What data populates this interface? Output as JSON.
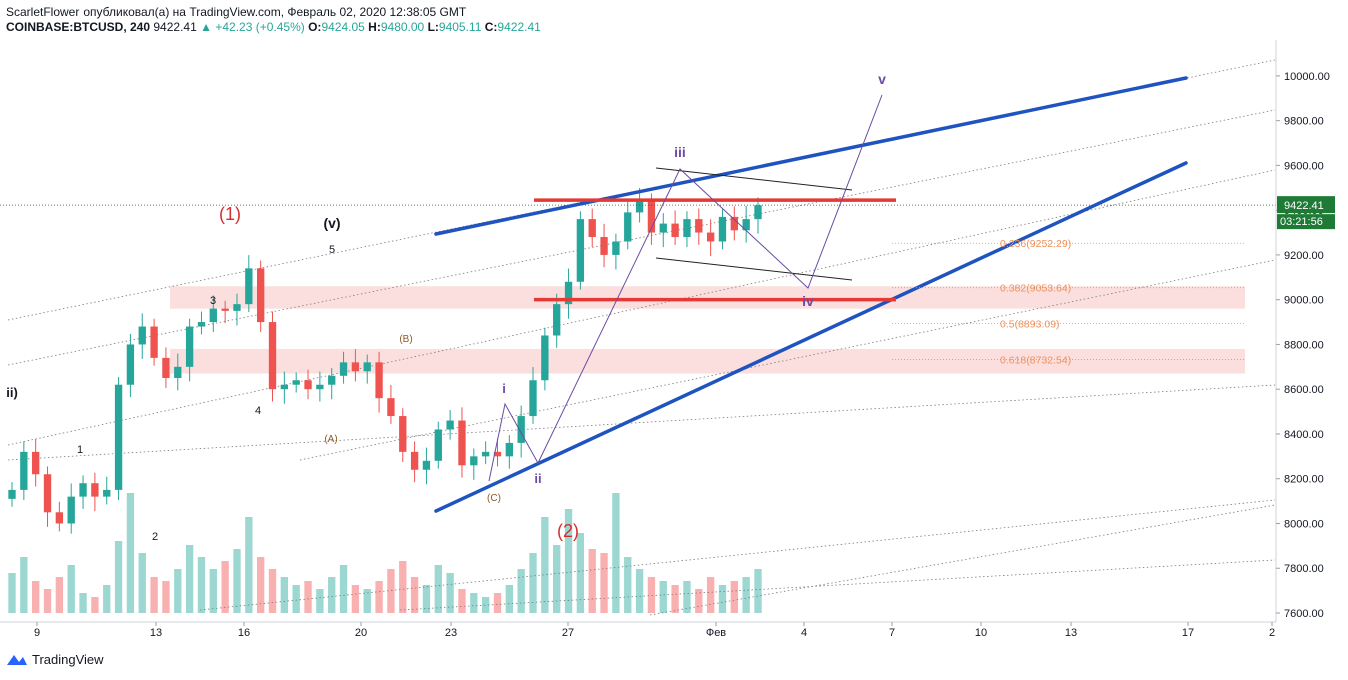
{
  "header": {
    "author": "ScarletFlower",
    "published_text": "опубликовал(а) на TradingView.com, Февраль 02, 2020 12:38:05 GMT",
    "symbol": "COINBASE:BTCUSD, 240",
    "last": "9422.41",
    "change_arrow": "▲",
    "change": "+42.23 (+0.45%)",
    "o_label": "O:",
    "o_val": "9424.05",
    "h_label": "H:",
    "h_val": "9480.00",
    "l_label": "L:",
    "l_val": "9405.11",
    "c_label": "C:",
    "c_val": "9422.41"
  },
  "footer": {
    "brand": "TradingView"
  },
  "colors": {
    "up": "#26a69a",
    "down": "#ef5350",
    "channel": "#1e53c0",
    "resistance": "#e53935",
    "wave": "#6a4ca3",
    "fib": "#f0915a",
    "price_tag": "#1e7a34",
    "zone": "#f9d4d4",
    "pitchfork": "#7b7b7b"
  },
  "chart_data": {
    "type": "candlestick",
    "interval": "240",
    "ylim": [
      7600,
      10100
    ],
    "x_ticks": [
      "9",
      "13",
      "16",
      "20",
      "23",
      "27",
      "Фев",
      "4",
      "7",
      "10",
      "13",
      "17",
      "2"
    ],
    "y_ticks": [
      "10000.00",
      "9800.00",
      "9600.00",
      "9400.00",
      "9200.00",
      "9000.00",
      "8800.00",
      "8600.00",
      "8400.00",
      "8200.00",
      "8000.00",
      "7800.00",
      "7600.00"
    ],
    "last_price": "9422.41",
    "countdown": "03:21:56",
    "fib_levels": [
      {
        "ratio": "0.236",
        "value": 9252.29
      },
      {
        "ratio": "0.382",
        "value": 9053.64
      },
      {
        "ratio": "0.5",
        "value": 8893.09
      },
      {
        "ratio": "0.618",
        "value": 8732.54
      }
    ],
    "zones": [
      {
        "from": 8960,
        "to": 9060
      },
      {
        "from": 8670,
        "to": 8780
      }
    ],
    "resistance_lines": [
      9445,
      9000
    ],
    "wave_labels_primary": [
      "(1)",
      "(2)"
    ],
    "wave_labels_intermediate": [
      "(v)",
      "ii)",
      "(A)",
      "(B)",
      "(C)"
    ],
    "wave_labels_minor": [
      "1",
      "2",
      "3",
      "4",
      "5"
    ],
    "wave_labels_minute": [
      "i",
      "ii",
      "iii",
      "iv",
      "v"
    ],
    "price_path": [
      8150,
      8320,
      8220,
      8050,
      8000,
      8120,
      8180,
      8120,
      8150,
      8620,
      8800,
      8880,
      8740,
      8650,
      8700,
      8880,
      8900,
      8960,
      8950,
      8980,
      9140,
      8900,
      8600,
      8620,
      8640,
      8600,
      8620,
      8660,
      8720,
      8680,
      8720,
      8560,
      8480,
      8320,
      8240,
      8280,
      8420,
      8460,
      8260,
      8300,
      8320,
      8300,
      8360,
      8480,
      8640,
      8840,
      8980,
      9080,
      9360,
      9280,
      9200,
      9260,
      9390,
      9440,
      9300,
      9340,
      9280,
      9360,
      9300,
      9260,
      9370,
      9310,
      9360,
      9422
    ],
    "volume_path": [
      100,
      140,
      80,
      60,
      90,
      120,
      50,
      40,
      70,
      180,
      300,
      150,
      90,
      80,
      110,
      170,
      140,
      110,
      130,
      160,
      240,
      140,
      110,
      90,
      70,
      80,
      60,
      90,
      120,
      70,
      60,
      80,
      110,
      130,
      90,
      70,
      120,
      100,
      60,
      50,
      40,
      50,
      70,
      110,
      150,
      240,
      170,
      260,
      200,
      160,
      150,
      300,
      140,
      110,
      90,
      80,
      70,
      80,
      60,
      90,
      70,
      80,
      90,
      110
    ]
  }
}
